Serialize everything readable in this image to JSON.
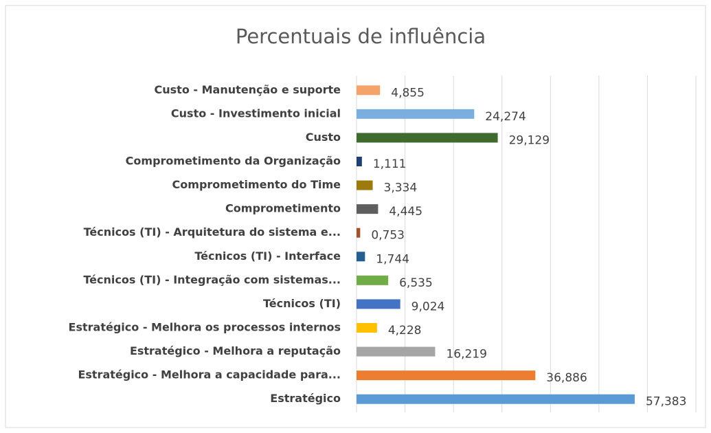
{
  "chart_data": {
    "type": "barh",
    "title": "Percentuais de influência",
    "categories": [
      "Custo - Manutenção e suporte",
      "Custo - Investimento inicial",
      "Custo",
      "Comprometimento da Organização",
      "Comprometimento do Time",
      "Comprometimento",
      "Técnicos (TI) - Arquitetura do sistema e...",
      "Técnicos (TI) - Interface",
      "Técnicos (TI) - Integração com sistemas...",
      "Técnicos (TI)",
      "Estratégico - Melhora os processos internos",
      "Estratégico - Melhora a reputação",
      "Estratégico - Melhora a capacidade para...",
      "Estratégico"
    ],
    "values": [
      4.855,
      24.274,
      29.129,
      1.111,
      3.334,
      4.445,
      0.753,
      1.744,
      6.535,
      9.024,
      4.228,
      16.219,
      36.886,
      57.383
    ],
    "value_labels": [
      "4,855",
      "24,274",
      "29,129",
      "1,111",
      "3,334",
      "4,445",
      "0,753",
      "1,744",
      "6,535",
      "9,024",
      "4,228",
      "16,219",
      "36,886",
      "57,383"
    ],
    "colors": [
      "#f4a46a",
      "#7aaee0",
      "#3f6b2e",
      "#1f3f73",
      "#9c7a0c",
      "#5f5f5f",
      "#a0522d",
      "#255e91",
      "#70ad47",
      "#4472c4",
      "#ffc000",
      "#a5a5a5",
      "#ed7d31",
      "#5b9bd5"
    ],
    "xlim": [
      0,
      70
    ],
    "xticks": [
      0,
      10,
      20,
      30,
      40,
      50,
      60,
      70
    ],
    "grid": true
  }
}
